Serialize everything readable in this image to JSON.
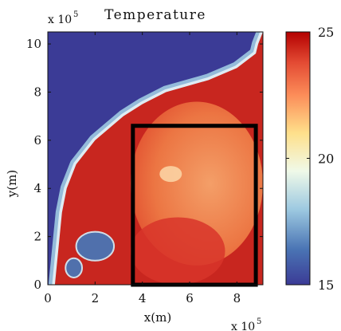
{
  "chart_data": {
    "type": "heatmap",
    "title": "Temperature",
    "xlabel": "x(m)",
    "ylabel": "y(m)",
    "x_scale_label": "x 10",
    "x_scale_exp": "5",
    "y_scale_label": "x 10",
    "y_scale_exp": "5",
    "xlim": [
      0,
      9.1
    ],
    "ylim": [
      0,
      10.5
    ],
    "xticks": [
      0,
      2,
      4,
      6,
      8
    ],
    "yticks": [
      0,
      2,
      4,
      6,
      8,
      10
    ],
    "colorbar": {
      "min": 15,
      "max": 25,
      "ticks": [
        15,
        20,
        25
      ]
    },
    "colormap": [
      "#3b3b96",
      "#4a74b4",
      "#9ecae1",
      "#f0f9e8",
      "#fee08b",
      "#fc8d59",
      "#e34a33",
      "#b30000"
    ],
    "field": {
      "description_cold": 15,
      "description_warm": 24
    },
    "coastline_x_at_y": [
      [
        0.0,
        0.3
      ],
      [
        1.0,
        0.4
      ],
      [
        2.0,
        0.5
      ],
      [
        3.0,
        0.6
      ],
      [
        4.0,
        0.8
      ],
      [
        5.0,
        1.2
      ],
      [
        6.0,
        2.0
      ],
      [
        6.5,
        2.6
      ],
      [
        7.0,
        3.2
      ],
      [
        7.5,
        4.0
      ],
      [
        8.0,
        5.0
      ],
      [
        8.5,
        6.8
      ],
      [
        9.0,
        8.0
      ],
      [
        9.6,
        8.8
      ],
      [
        10.0,
        8.9
      ]
    ],
    "inset_box": {
      "x0": 3.6,
      "x1": 8.8,
      "y0": 0.0,
      "y1": 6.6
    },
    "cold_patches": [
      {
        "cx": 2.0,
        "cy": 1.6,
        "rx": 0.8,
        "ry": 0.6,
        "value": 16.5
      },
      {
        "cx": 1.1,
        "cy": 0.7,
        "rx": 0.35,
        "ry": 0.4,
        "value": 16.0
      }
    ]
  }
}
